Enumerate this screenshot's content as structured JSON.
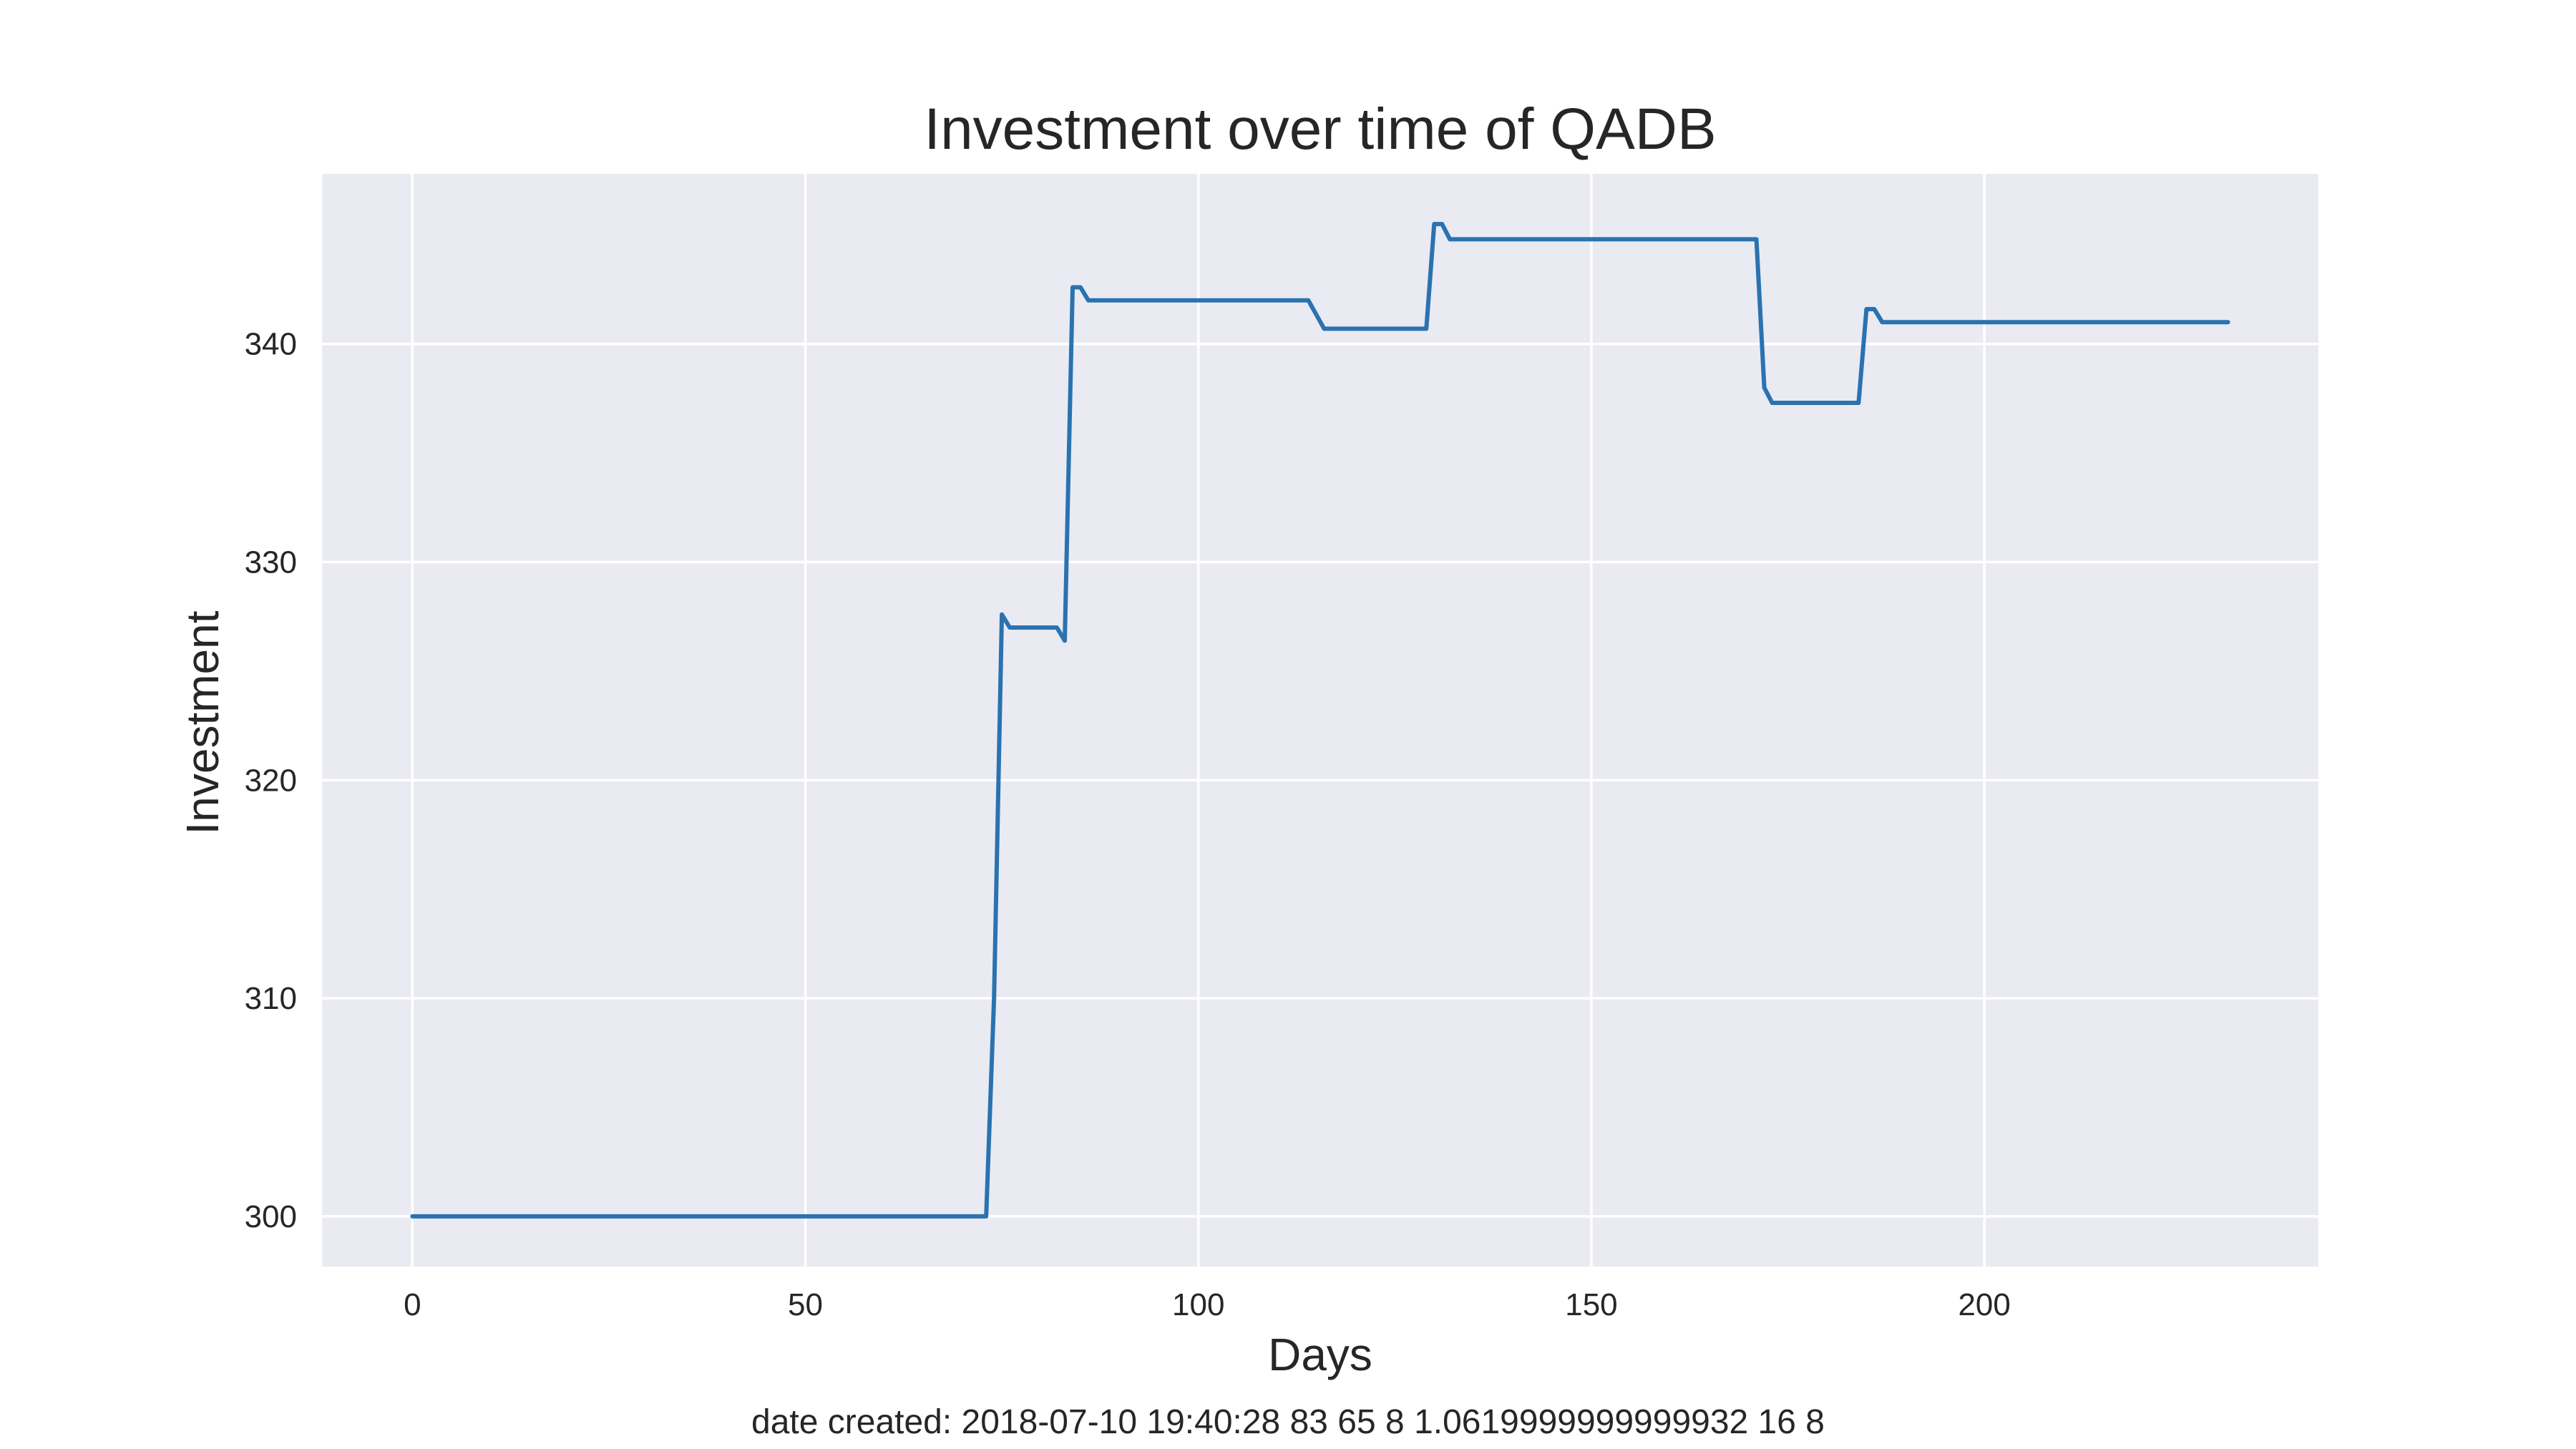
{
  "chart_data": {
    "type": "line",
    "title": "Investment over time of QADB",
    "xlabel": "Days",
    "ylabel": "Investment",
    "xlim": [
      -11.5,
      242.5
    ],
    "ylim": [
      297.7,
      347.8
    ],
    "xticks": [
      0,
      50,
      100,
      150,
      200
    ],
    "yticks": [
      300,
      310,
      320,
      330,
      340
    ],
    "grid": true,
    "colors": {
      "background": "#eaeaf2",
      "grid": "#ffffff",
      "line": "#2a72b0",
      "text": "#262626"
    },
    "series": [
      {
        "x": [
          0,
          73,
          74,
          75,
          76,
          77,
          82,
          83,
          84,
          85,
          86,
          114,
          116,
          129,
          130,
          131,
          132,
          171,
          172,
          173,
          184,
          185,
          186,
          187,
          231
        ],
        "y": [
          300,
          300,
          310,
          327.6,
          327,
          327,
          327,
          326.4,
          342.6,
          342.6,
          342,
          342,
          340.7,
          340.7,
          345.5,
          345.5,
          344.8,
          344.8,
          338,
          337.3,
          337.3,
          341.6,
          341.6,
          341,
          341
        ]
      }
    ]
  },
  "footer": {
    "text": "date created: 2018-07-10 19:40:28 83 65 8 1.0619999999999932 16 8"
  }
}
